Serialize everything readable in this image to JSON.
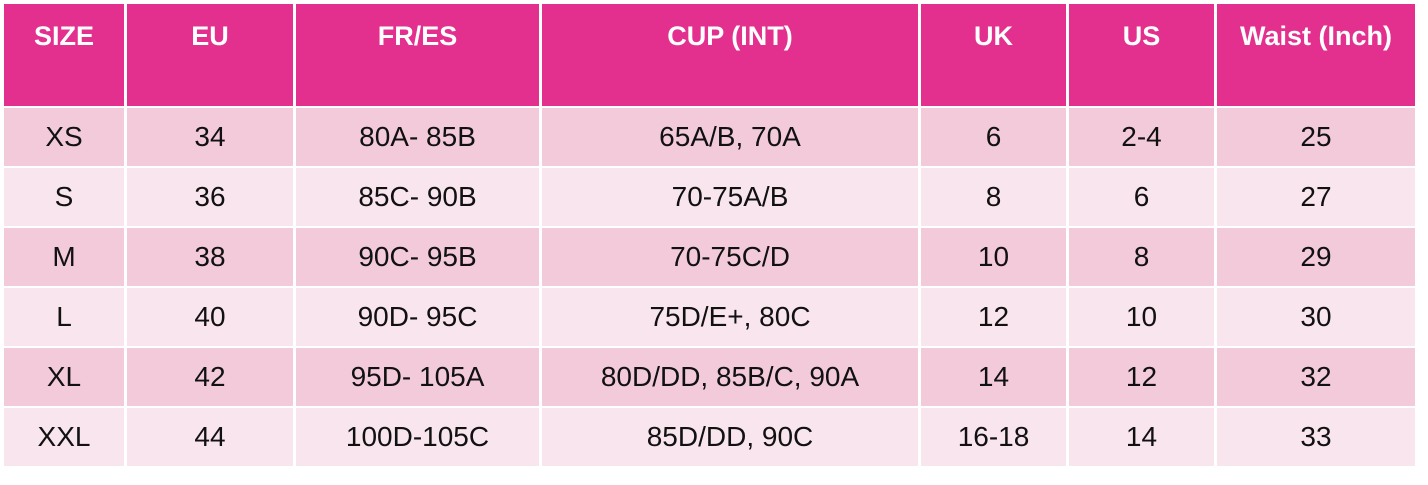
{
  "table": {
    "header": [
      "SIZE",
      "EU",
      "FR/ES",
      "CUP (INT)",
      "UK",
      "US",
      "Waist (Inch)"
    ],
    "rows": [
      [
        "XS",
        "34",
        "80A- 85B",
        "65A/B, 70A",
        "6",
        "2-4",
        "25"
      ],
      [
        "S",
        "36",
        "85C- 90B",
        "70-75A/B",
        "8",
        "6",
        "27"
      ],
      [
        "M",
        "38",
        "90C- 95B",
        "70-75C/D",
        "10",
        "8",
        "29"
      ],
      [
        "L",
        "40",
        "90D- 95C",
        "75D/E+, 80C",
        "12",
        "10",
        "30"
      ],
      [
        "XL",
        "42",
        "95D- 105A",
        "80D/DD, 85B/C, 90A",
        "14",
        "12",
        "32"
      ],
      [
        "XXL",
        "44",
        "100D-105C",
        "85D/DD, 90C",
        "16-18",
        "14",
        "33"
      ]
    ]
  }
}
